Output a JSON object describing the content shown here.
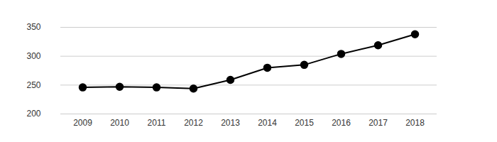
{
  "chart_data": {
    "type": "line",
    "categories": [
      "2009",
      "2010",
      "2011",
      "2012",
      "2013",
      "2014",
      "2015",
      "2016",
      "2017",
      "2018"
    ],
    "values": [
      246,
      247,
      246,
      244,
      259,
      280,
      285,
      304,
      319,
      338
    ],
    "color": "#000000",
    "marker": "circle",
    "ylim": [
      200,
      350
    ],
    "yticks": [
      200,
      250,
      300,
      350
    ],
    "grid": true
  }
}
